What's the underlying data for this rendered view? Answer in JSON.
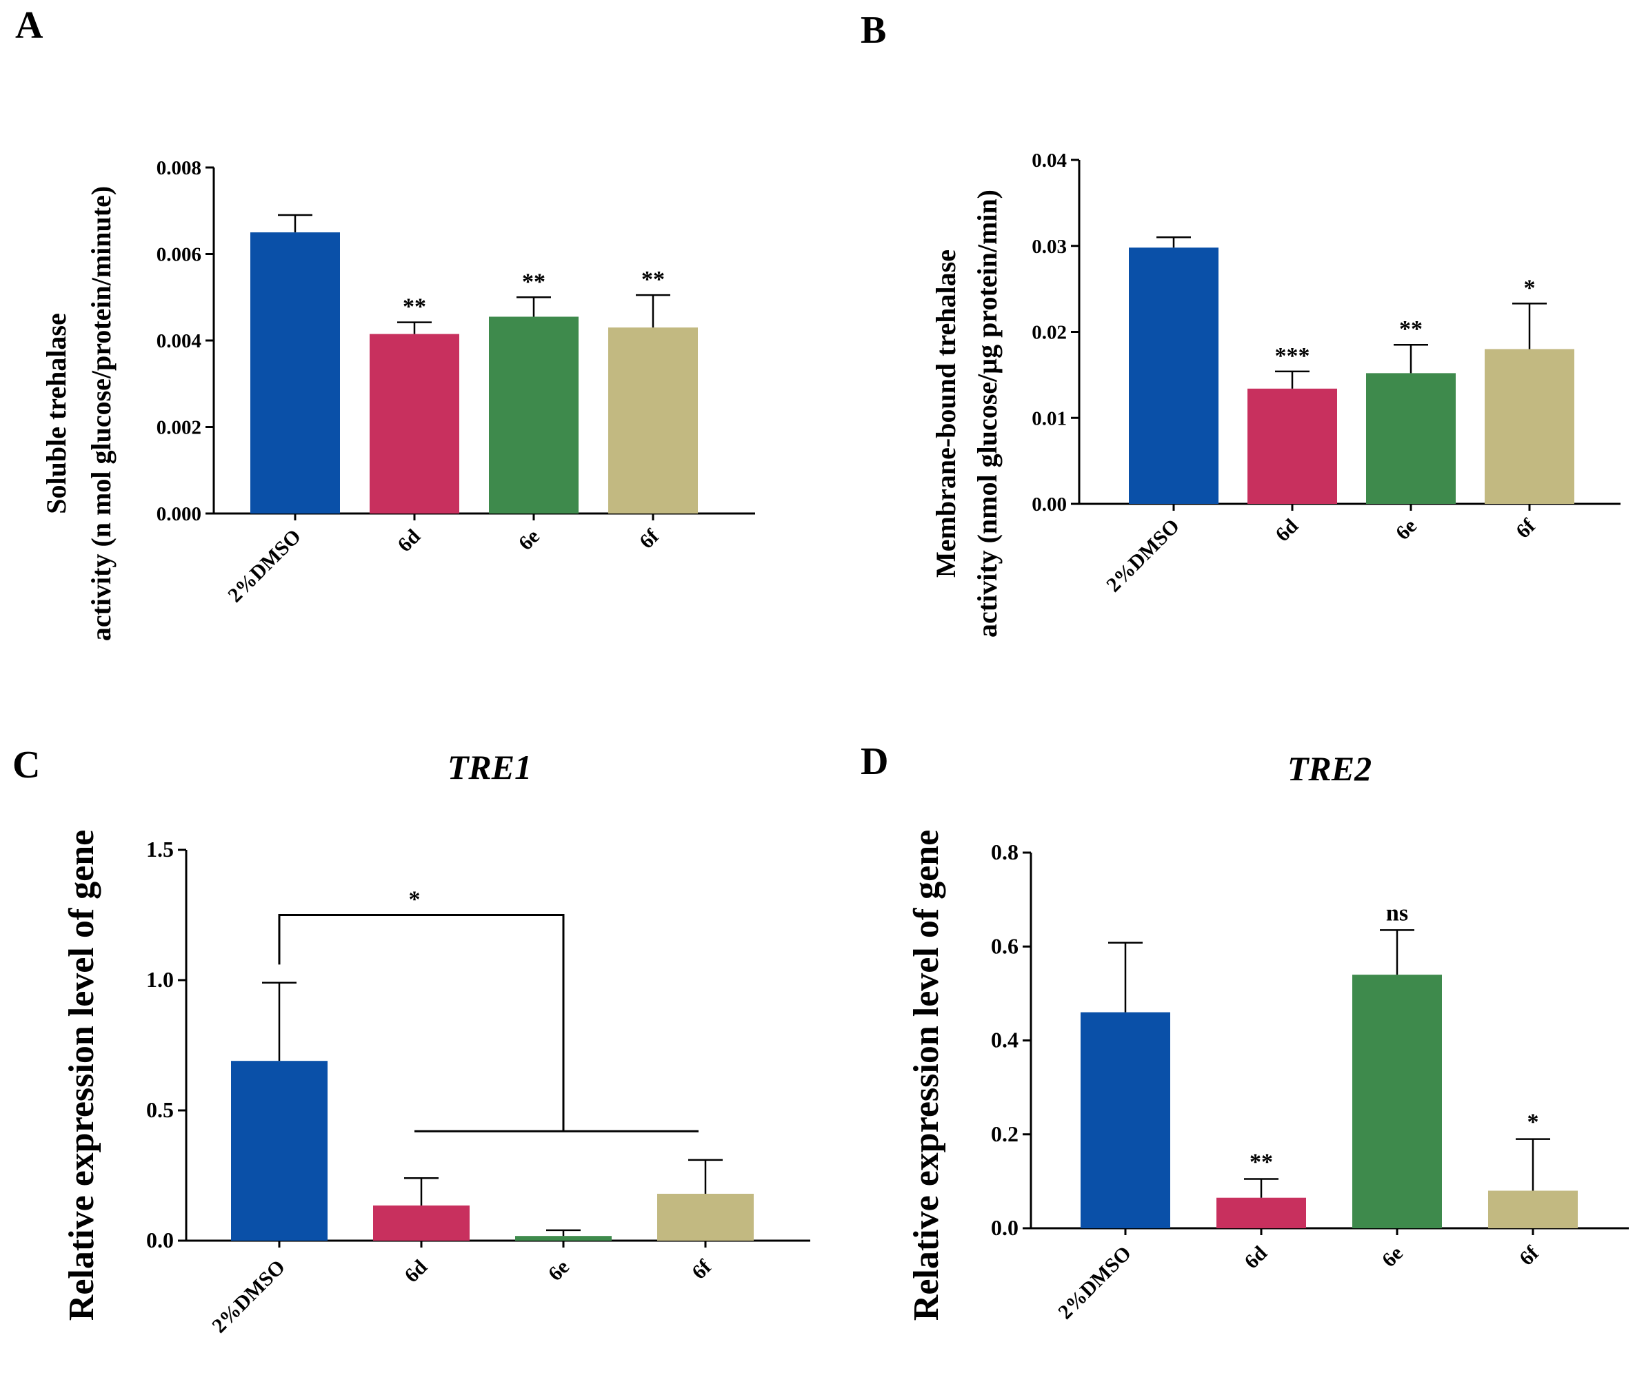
{
  "chart_data": [
    {
      "panel": "A",
      "type": "bar",
      "title": "",
      "ylabel_lines": [
        "Soluble trehalase",
        "activity (n mol glucose/protein/minute)"
      ],
      "categories": [
        "2%DMSO",
        "6d",
        "6e",
        "6f"
      ],
      "values": [
        0.0065,
        0.00415,
        0.00455,
        0.0043
      ],
      "errors": [
        0.0004,
        0.00027,
        0.00045,
        0.00075
      ],
      "significance": [
        "",
        "**",
        "**",
        "**"
      ],
      "ylim": [
        0,
        0.008
      ],
      "yticks": [
        "0.000",
        "0.002",
        "0.004",
        "0.006",
        "0.008"
      ],
      "colors": [
        "#0a50a8",
        "#c8305e",
        "#3e8a4c",
        "#c2b981"
      ]
    },
    {
      "panel": "B",
      "type": "bar",
      "title": "",
      "ylabel_lines": [
        "Membrane-bound trehalase",
        "activity (nmol glucose/µg protein/min)"
      ],
      "categories": [
        "2%DMSO",
        "6d",
        "6e",
        "6f"
      ],
      "values": [
        0.0298,
        0.0134,
        0.0152,
        0.018
      ],
      "errors": [
        0.0012,
        0.002,
        0.0033,
        0.0053
      ],
      "significance": [
        "",
        "***",
        "**",
        "*"
      ],
      "ylim": [
        0,
        0.04
      ],
      "yticks": [
        "0.00",
        "0.01",
        "0.02",
        "0.03",
        "0.04"
      ],
      "colors": [
        "#0a50a8",
        "#c8305e",
        "#3e8a4c",
        "#c2b981"
      ]
    },
    {
      "panel": "C",
      "type": "bar",
      "title": "TRE1",
      "ylabel_lines": [
        "Relative expression level of gene"
      ],
      "categories": [
        "2%DMSO",
        "6d",
        "6e",
        "6f"
      ],
      "values": [
        0.69,
        0.135,
        0.018,
        0.18
      ],
      "errors": [
        0.3,
        0.105,
        0.022,
        0.13
      ],
      "significance": [
        "",
        "",
        "",
        ""
      ],
      "bracket": {
        "label": "*",
        "from": "2%DMSO",
        "to": [
          "6d",
          "6e",
          "6f"
        ]
      },
      "ylim": [
        0,
        1.5
      ],
      "yticks": [
        "0.0",
        "0.5",
        "1.0",
        "1.5"
      ],
      "colors": [
        "#0a50a8",
        "#c8305e",
        "#3e8a4c",
        "#c2b981"
      ]
    },
    {
      "panel": "D",
      "type": "bar",
      "title": "TRE2",
      "ylabel_lines": [
        "Relative expression level of gene"
      ],
      "categories": [
        "2%DMSO",
        "6d",
        "6e",
        "6f"
      ],
      "values": [
        0.46,
        0.065,
        0.54,
        0.08
      ],
      "errors": [
        0.148,
        0.04,
        0.095,
        0.11
      ],
      "significance": [
        "",
        "**",
        "ns",
        "*"
      ],
      "ylim": [
        0,
        0.8
      ],
      "yticks": [
        "0.0",
        "0.2",
        "0.4",
        "0.6",
        "0.8"
      ],
      "colors": [
        "#0a50a8",
        "#c8305e",
        "#3e8a4c",
        "#c2b981"
      ]
    }
  ]
}
